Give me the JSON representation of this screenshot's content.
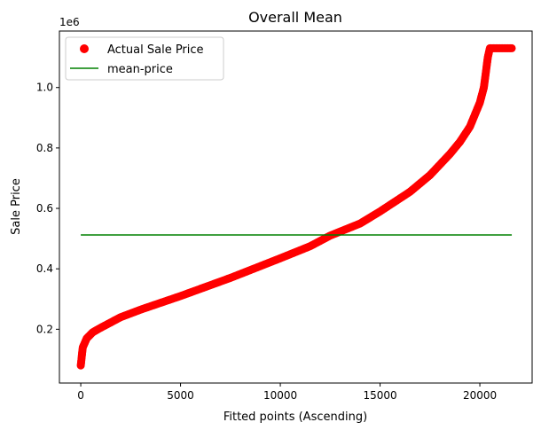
{
  "chart_data": {
    "type": "scatter",
    "title": "Overall Mean",
    "xlabel": "Fitted points (Ascending)",
    "ylabel": "Sale Price",
    "y_offset_label": "1e6",
    "xlim": [
      -1070,
      22620
    ],
    "ylim": [
      0.022,
      1.187
    ],
    "xticks": [
      0,
      5000,
      10000,
      15000,
      20000
    ],
    "xtick_labels": [
      "0",
      "5000",
      "10000",
      "15000",
      "20000"
    ],
    "yticks": [
      0.2,
      0.4,
      0.6,
      0.8,
      1.0
    ],
    "ytick_labels": [
      "0.2",
      "0.4",
      "0.6",
      "0.8",
      "1.0"
    ],
    "grid": false,
    "legend_placement": "upper-left",
    "series": [
      {
        "name": "Actual Sale Price",
        "kind": "scatter",
        "color": "#ff0000",
        "x": [
          0,
          100,
          300,
          600,
          1000,
          2000,
          3000,
          5000,
          7500,
          10000,
          11500,
          12500,
          14000,
          15000,
          16500,
          17500,
          18500,
          19000,
          19500,
          20000,
          20200,
          20400,
          20500,
          21000,
          21600
        ],
        "y": [
          0.08,
          0.14,
          0.17,
          0.19,
          0.205,
          0.24,
          0.265,
          0.31,
          0.37,
          0.435,
          0.475,
          0.51,
          0.55,
          0.59,
          0.655,
          0.71,
          0.78,
          0.82,
          0.87,
          0.95,
          1.0,
          1.1,
          1.13,
          1.13,
          1.13
        ]
      },
      {
        "name": "mean-price",
        "kind": "line",
        "color": "#008000",
        "x": [
          0,
          21600
        ],
        "y": [
          0.512,
          0.512
        ]
      }
    ]
  }
}
